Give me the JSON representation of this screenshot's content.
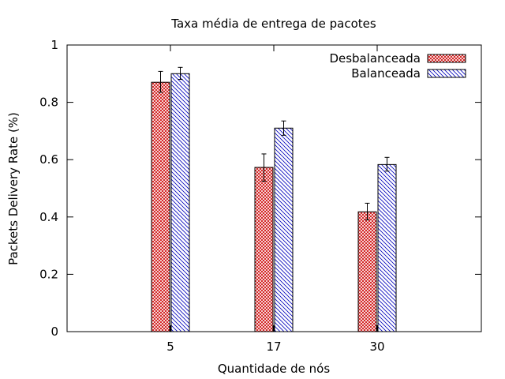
{
  "chart_data": {
    "type": "bar",
    "title": "Taxa média de entrega de pacotes",
    "xlabel": "Quantidade de nós",
    "ylabel": "Packets Delivery Rate (%)",
    "categories": [
      "5",
      "17",
      "30"
    ],
    "ylim": [
      0,
      1
    ],
    "yticks": [
      "0",
      "0.2",
      "0.4",
      "0.6",
      "0.8",
      "1"
    ],
    "grid": false,
    "legend_position": "top-right",
    "series": [
      {
        "name": "Desbalanceada",
        "values": [
          0.87,
          0.573,
          0.418
        ],
        "error_low": [
          0.835,
          0.525,
          0.39
        ],
        "error_high": [
          0.908,
          0.62,
          0.448
        ],
        "color": "#cc0000",
        "pattern": "crosshatch"
      },
      {
        "name": "Balanceada",
        "values": [
          0.9,
          0.71,
          0.583
        ],
        "error_low": [
          0.88,
          0.685,
          0.56
        ],
        "error_high": [
          0.922,
          0.735,
          0.608
        ],
        "color": "#0000bb",
        "pattern": "diagonal"
      }
    ]
  }
}
